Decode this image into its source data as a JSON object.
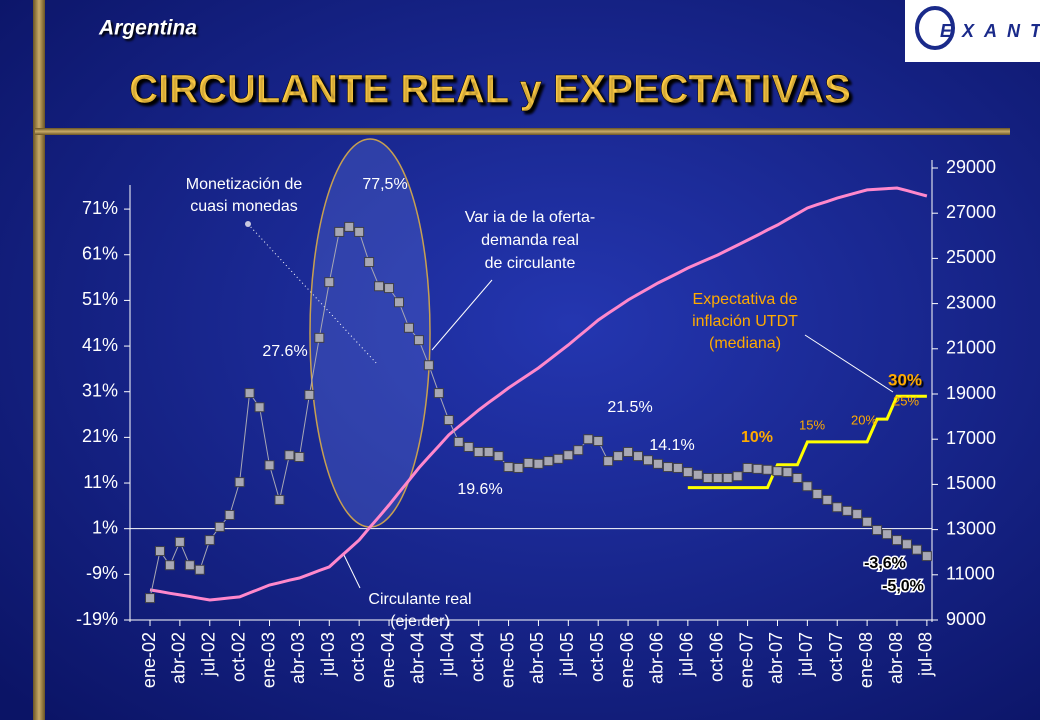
{
  "heading": "Argentina",
  "logo": "EXANTE",
  "chart_data": {
    "type": "line",
    "title": "CIRCULANTE REAL y EXPECTATIVAS",
    "categories": [
      "ene-02",
      null,
      null,
      "abr-02",
      null,
      null,
      "jul-02",
      null,
      null,
      "oct-02",
      null,
      null,
      "ene-03",
      null,
      null,
      "abr-03",
      null,
      null,
      "jul-03",
      null,
      null,
      "oct-03",
      null,
      null,
      "ene-04",
      null,
      null,
      "abr-04",
      null,
      null,
      "jul-04",
      null,
      null,
      "oct-04",
      null,
      null,
      "ene-05",
      null,
      null,
      "abr-05",
      null,
      null,
      "jul-05",
      null,
      null,
      "oct-05",
      null,
      null,
      "ene-06",
      null,
      null,
      "abr-06",
      null,
      null,
      "jul-06",
      null,
      null,
      "oct-06",
      null,
      null,
      "ene-07",
      null,
      null,
      "abr-07",
      null,
      null,
      "jul-07",
      null,
      null,
      "oct-07",
      null,
      null,
      "ene-08",
      null,
      null,
      "abr-08",
      null,
      null,
      "jul-08"
    ],
    "series": [
      {
        "color": "#a8a8b4",
        "marker": "square",
        "values": [
          -14.2,
          -3.9,
          -7.0,
          -1.9,
          -7.0,
          -8.0,
          -1.5,
          1.4,
          4.0,
          11.2,
          30.7,
          27.6,
          14.9,
          7.3,
          17.1,
          16.7,
          30.3,
          42.8,
          55.0,
          66.0,
          67.1,
          66.0,
          59.4,
          54.1,
          53.7,
          50.6,
          45.0,
          42.3,
          36.8,
          30.7,
          24.8,
          20.0,
          18.9,
          17.8,
          17.8,
          16.9,
          14.5,
          14.3,
          15.4,
          15.2,
          15.8,
          16.3,
          17.1,
          18.2,
          20.6,
          20.2,
          15.8,
          16.9,
          17.8,
          16.9,
          16.0,
          15.2,
          14.5,
          14.3,
          13.4,
          12.8,
          12.1,
          12.1,
          12.1,
          12.5,
          14.3,
          14.1,
          13.9,
          13.6,
          13.4,
          12.1,
          10.3,
          8.6,
          7.3,
          5.7,
          4.9,
          4.2,
          2.5,
          0.7,
          -0.2,
          -1.5,
          -2.4,
          -3.6,
          -5.0
        ]
      },
      {
        "color": "#ff88cc",
        "axis": "y2",
        "values": [
          10330,
          10260,
          10180,
          10110,
          10040,
          9960,
          9885,
          9930,
          9980,
          10020,
          10200,
          10370,
          10550,
          10650,
          10760,
          10860,
          11020,
          11190,
          11350,
          11750,
          12140,
          12540,
          13060,
          13570,
          14090,
          14640,
          15180,
          15730,
          16220,
          16700,
          17190,
          17560,
          17920,
          18290,
          18620,
          18940,
          19270,
          19560,
          19860,
          20150,
          20490,
          20830,
          21170,
          21540,
          21900,
          22270,
          22570,
          22860,
          23160,
          23410,
          23660,
          23910,
          24130,
          24350,
          24575,
          24770,
          24960,
          25150,
          25370,
          25590,
          25810,
          26030,
          26260,
          26480,
          26730,
          26980,
          27230,
          27380,
          27520,
          27670,
          27790,
          27910,
          28030,
          28060,
          28090,
          28115,
          28000,
          27880,
          27760
        ]
      },
      {
        "color": "#ffff00",
        "values": [
          null,
          null,
          null,
          null,
          null,
          null,
          null,
          null,
          null,
          null,
          null,
          null,
          null,
          null,
          null,
          null,
          null,
          null,
          null,
          null,
          null,
          null,
          null,
          null,
          null,
          null,
          null,
          null,
          null,
          null,
          null,
          null,
          null,
          null,
          null,
          null,
          null,
          null,
          null,
          null,
          null,
          null,
          null,
          null,
          null,
          null,
          null,
          null,
          null,
          null,
          null,
          null,
          null,
          null,
          10,
          10,
          10,
          10,
          10,
          10,
          10,
          10,
          10,
          15,
          15,
          15,
          20,
          20,
          20,
          20,
          20,
          20,
          20,
          25,
          25,
          30,
          30,
          30,
          30
        ]
      }
    ],
    "ylim": [
      -19,
      80
    ],
    "yticks": [
      {
        "value": -19,
        "label": "-19%"
      },
      {
        "value": -9,
        "label": "-9%"
      },
      {
        "value": 1,
        "label": "1%"
      },
      {
        "value": 11,
        "label": "11%"
      },
      {
        "value": 21,
        "label": "21%"
      },
      {
        "value": 31,
        "label": "31%"
      },
      {
        "value": 41,
        "label": "41%"
      },
      {
        "value": 51,
        "label": "51%"
      },
      {
        "value": 61,
        "label": "61%"
      },
      {
        "value": 71,
        "label": "71%"
      }
    ],
    "y2lim": [
      9000,
      29000
    ],
    "y2ticks": [
      9000,
      11000,
      13000,
      15000,
      17000,
      19000,
      21000,
      23000,
      25000,
      27000,
      29000
    ],
    "annotations": [
      {
        "lines": [
          "Monetización de",
          "cuasi monedas"
        ]
      },
      {
        "text": "77,5%"
      },
      {
        "lines": [
          "Var ia de la oferta-",
          "demanda real",
          "de circulante"
        ]
      },
      {
        "text": "27.6%"
      },
      {
        "text": "21.5%"
      },
      {
        "text": "14.1%"
      },
      {
        "text": "19.6%"
      },
      {
        "lines": [
          "Expectativa de",
          "inflación UTDT",
          "(mediana)"
        ]
      },
      {
        "text": "10%"
      },
      {
        "text": "15%"
      },
      {
        "text": "20%"
      },
      {
        "text": "25%"
      },
      {
        "text": "30%"
      },
      {
        "text": "-3,6%"
      },
      {
        "text": "-5,0%"
      },
      {
        "lines": [
          "Circulante real",
          "(eje der)"
        ]
      }
    ]
  }
}
